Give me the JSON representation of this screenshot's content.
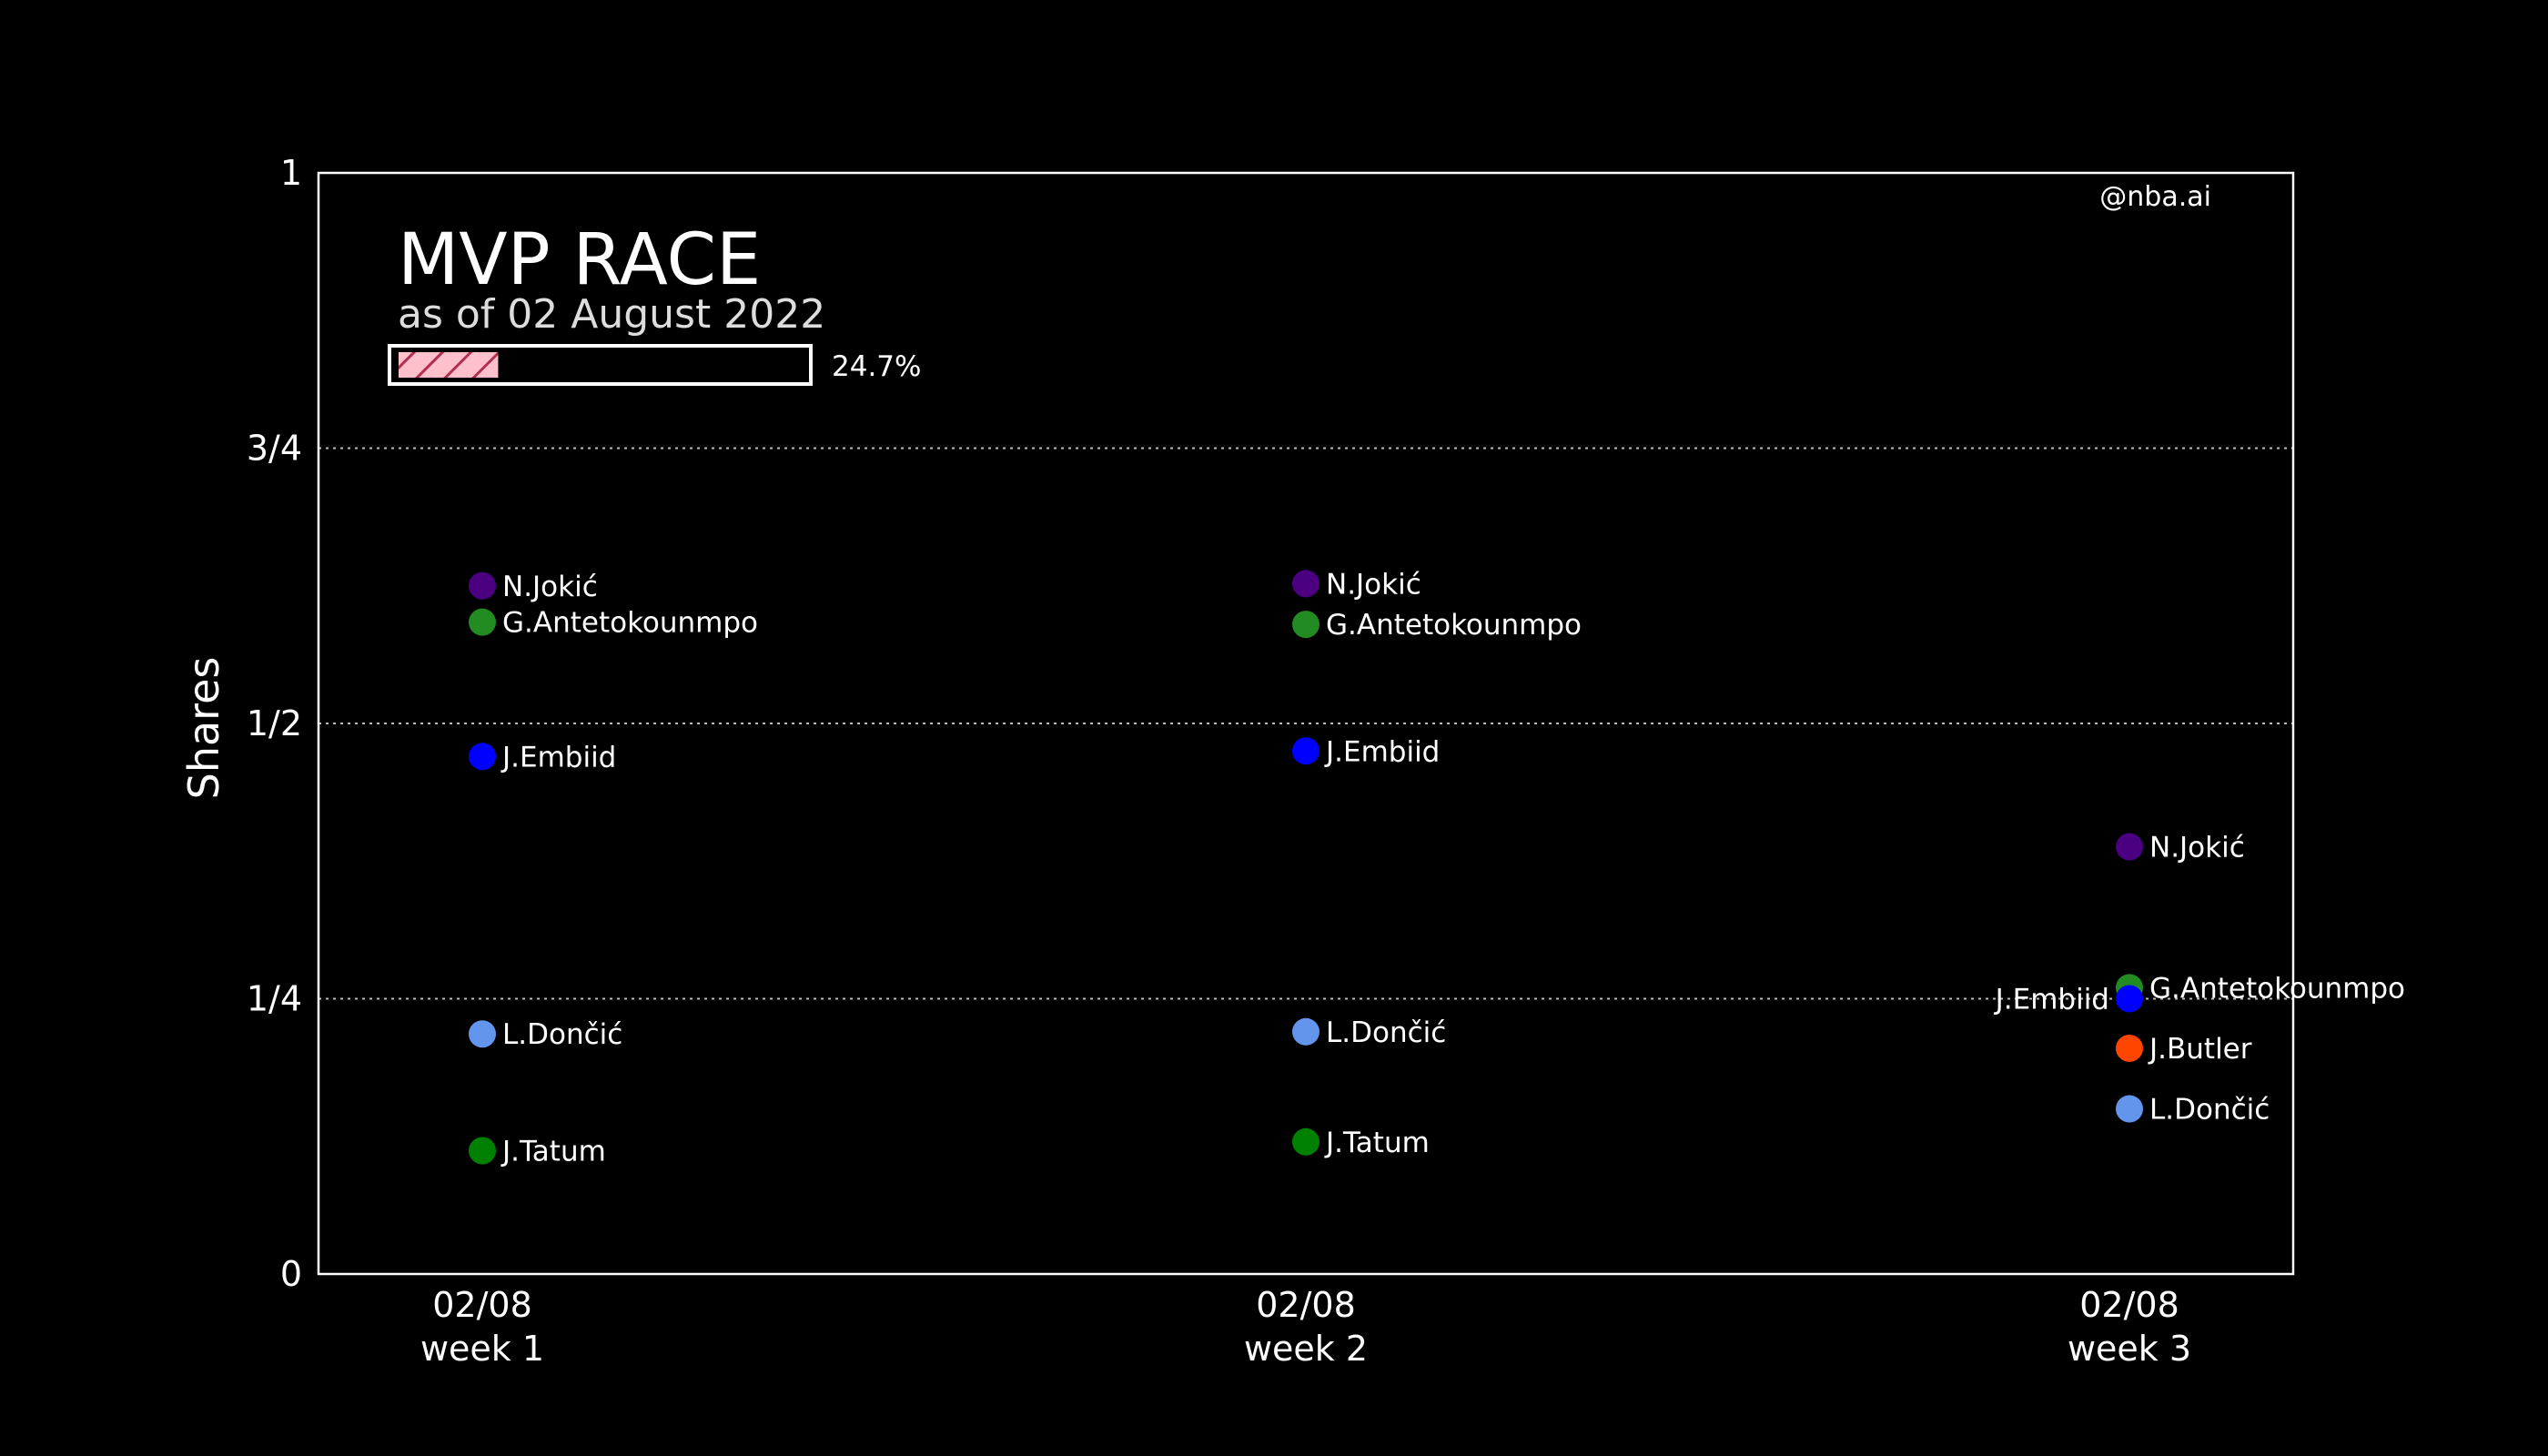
{
  "chart_data": {
    "type": "scatter",
    "title": "MVP RACE",
    "subtitle": "as of 02 August 2022",
    "progress": {
      "value": 24.7,
      "label": "24.7%"
    },
    "watermark": "@nba.ai",
    "ylabel": "Shares",
    "xlabel": "",
    "ylim": [
      0,
      1
    ],
    "yticks": [
      {
        "value": 0,
        "label": "0"
      },
      {
        "value": 0.25,
        "label": "1/4"
      },
      {
        "value": 0.5,
        "label": "1/2"
      },
      {
        "value": 0.75,
        "label": "3/4"
      },
      {
        "value": 1,
        "label": "1"
      }
    ],
    "grid": "horizontal dotted",
    "categories": [
      {
        "date": "02/08",
        "week": "week 1"
      },
      {
        "date": "02/08",
        "week": "week 2"
      },
      {
        "date": "02/08",
        "week": "week 3"
      }
    ],
    "points": [
      {
        "week": 0,
        "player": "N.Jokić",
        "value": 0.625,
        "color": "#4b0082"
      },
      {
        "week": 0,
        "player": "G.Antetokounmpo",
        "value": 0.592,
        "color": "#228b22"
      },
      {
        "week": 0,
        "player": "J.Embiid",
        "value": 0.47,
        "color": "#0000ff"
      },
      {
        "week": 0,
        "player": "L.Dončić",
        "value": 0.218,
        "color": "#6495ed"
      },
      {
        "week": 0,
        "player": "J.Tatum",
        "value": 0.112,
        "color": "#008000"
      },
      {
        "week": 1,
        "player": "N.Jokić",
        "value": 0.627,
        "color": "#4b0082"
      },
      {
        "week": 1,
        "player": "G.Antetokounmpo",
        "value": 0.59,
        "color": "#228b22"
      },
      {
        "week": 1,
        "player": "J.Embiid",
        "value": 0.475,
        "color": "#0000ff"
      },
      {
        "week": 1,
        "player": "L.Dončić",
        "value": 0.22,
        "color": "#6495ed"
      },
      {
        "week": 1,
        "player": "J.Tatum",
        "value": 0.12,
        "color": "#008000"
      },
      {
        "week": 2,
        "player": "N.Jokić",
        "value": 0.388,
        "color": "#4b0082"
      },
      {
        "week": 2,
        "player": "G.Antetokounmpo",
        "value": 0.26,
        "color": "#228b22"
      },
      {
        "week": 2,
        "player": "J.Embiid",
        "value": 0.25,
        "color": "#0000ff",
        "label_side": "left"
      },
      {
        "week": 2,
        "player": "J.Butler",
        "value": 0.205,
        "color": "#ff4500"
      },
      {
        "week": 2,
        "player": "L.Dončić",
        "value": 0.15,
        "color": "#6495ed"
      }
    ]
  }
}
